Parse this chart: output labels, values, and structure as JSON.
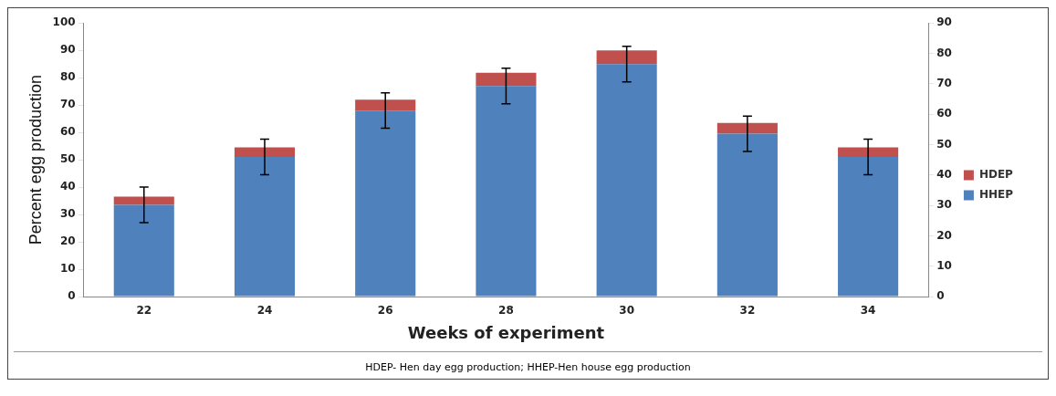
{
  "chart_data": {
    "type": "bar",
    "xlabel": "Weeks of experiment",
    "ylabel": "Percent egg production",
    "categories": [
      "22",
      "24",
      "26",
      "28",
      "30",
      "32",
      "34"
    ],
    "stacked": true,
    "series": [
      {
        "name": "HHEP",
        "color": "#4f81bd",
        "values": [
          33.5,
          51,
          68,
          77,
          85,
          59.5,
          51
        ],
        "errors": [
          6.5,
          6.5,
          6.5,
          6.5,
          6.5,
          6.5,
          6.5
        ]
      },
      {
        "name": "HDEP",
        "color": "#c0504d",
        "values": [
          3,
          3.5,
          4,
          4.8,
          5,
          4,
          3.5
        ]
      }
    ],
    "ylim": [
      0,
      100
    ],
    "yticks": [
      0,
      10,
      20,
      30,
      40,
      50,
      60,
      70,
      80,
      90,
      100
    ],
    "y2lim": [
      0,
      90
    ],
    "y2ticks": [
      0,
      10,
      20,
      30,
      40,
      50,
      60,
      70,
      80,
      90
    ],
    "grid": false,
    "legend": "right",
    "annotations": [
      "HDEP- Hen day egg production; HHEP-Hen house egg production"
    ]
  }
}
